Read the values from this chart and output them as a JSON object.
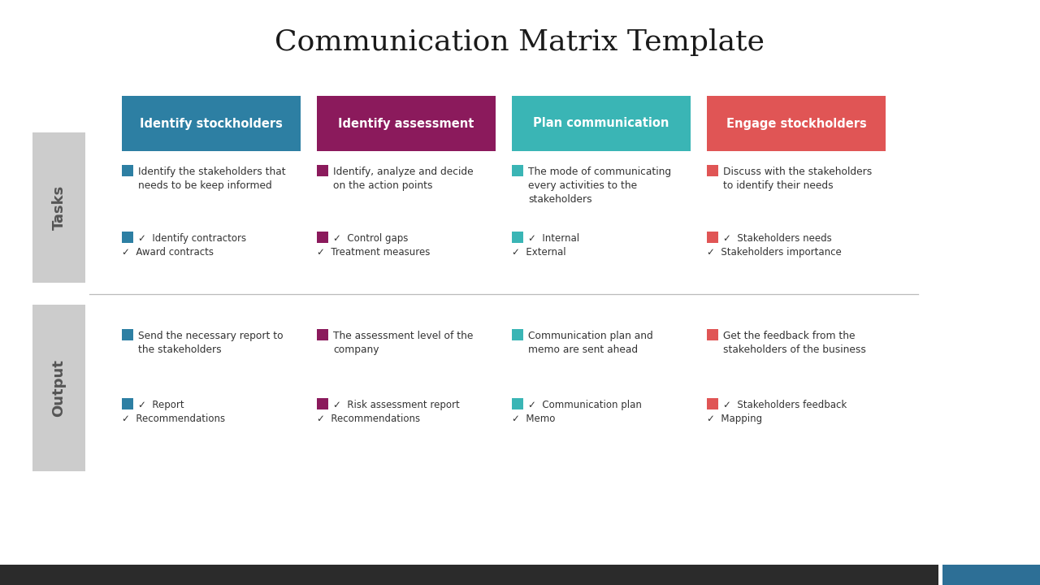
{
  "title": "Communication Matrix Template",
  "title_fontsize": 26,
  "title_font": "serif",
  "bg_color": "#ffffff",
  "footer_dark": "#2b2b2b",
  "footer_blue": "#2d6f96",
  "phases": [
    {
      "label": "Identify stockholders",
      "color": "#2d7fa3"
    },
    {
      "label": "Identify assessment",
      "color": "#8b1a5c"
    },
    {
      "label": "Plan communication",
      "color": "#3ab5b5"
    },
    {
      "label": "Engage stockholders",
      "color": "#e05555"
    }
  ],
  "row_label_bg": "#cccccc",
  "row_label_color": "#555555",
  "tasks_descriptions": [
    "Identify the stakeholders that\nneeds to be keep informed",
    "Identify, analyze and decide\non the action points",
    "The mode of communicating\nevery activities to the\nstakeholders",
    "Discuss with the stakeholders\nto identify their needs"
  ],
  "tasks_bullets": [
    [
      "✓  Identify contractors",
      "✓  Award contracts"
    ],
    [
      "✓  Control gaps",
      "✓  Treatment measures"
    ],
    [
      "✓  Internal",
      "✓  External"
    ],
    [
      "✓  Stakeholders needs",
      "✓  Stakeholders importance"
    ]
  ],
  "output_descriptions": [
    "Send the necessary report to\nthe stakeholders",
    "The assessment level of the\ncompany",
    "Communication plan and\nmemo are sent ahead",
    "Get the feedback from the\nstakeholders of the business"
  ],
  "output_bullets": [
    [
      "✓  Report",
      "✓  Recommendations"
    ],
    [
      "✓  Risk assessment report",
      "✓  Recommendations"
    ],
    [
      "✓  Communication plan",
      "✓  Memo"
    ],
    [
      "✓  Stakeholders feedback",
      "✓  Mapping"
    ]
  ]
}
